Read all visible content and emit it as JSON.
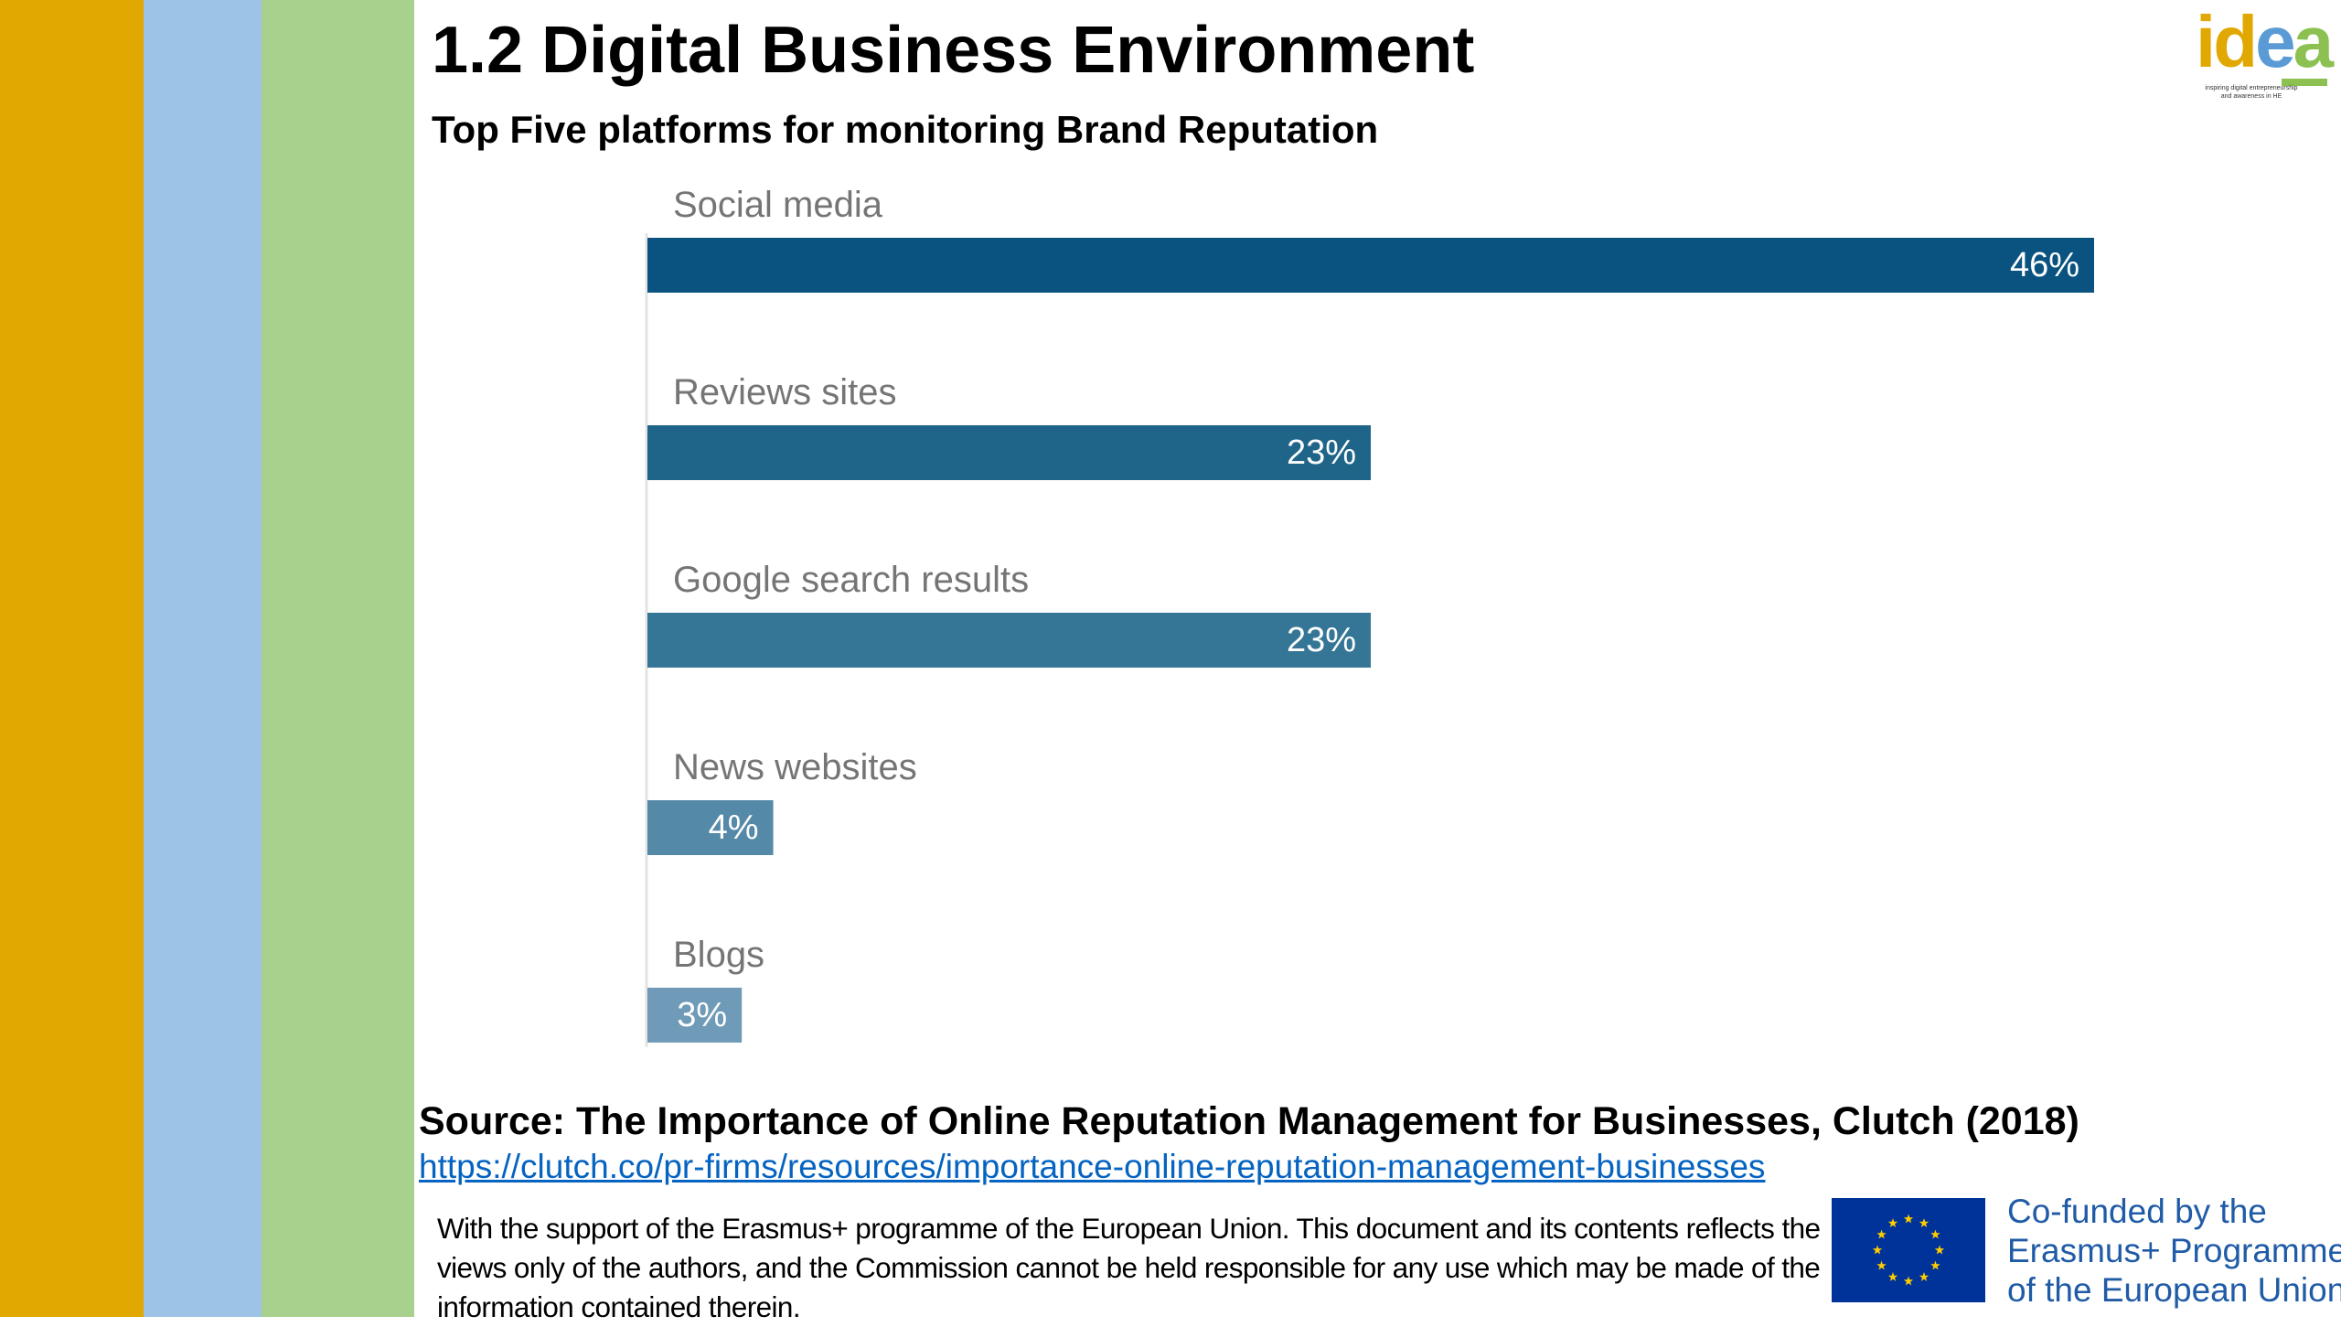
{
  "slide": {
    "title": "1.2 Digital Business Environment",
    "subtitle": "Top Five platforms for monitoring Brand Reputation"
  },
  "logo": {
    "text": "idea",
    "tagline": "inspiring digital entrepreneurship and awareness in HE"
  },
  "colors": {
    "stripe_1": "#e0a800",
    "stripe_2": "#9dc3e6",
    "stripe_3": "#a9d18e",
    "bar_colors": [
      "#0a5380",
      "#1f6489",
      "#357595",
      "#5489a8",
      "#6f9bb8"
    ],
    "category_label": "#757575"
  },
  "chart_data": {
    "type": "bar",
    "orientation": "horizontal",
    "title": "Top Five platforms for monitoring Brand Reputation",
    "categories": [
      "Social media",
      "Reviews sites",
      "Google search results",
      "News websites",
      "Blogs"
    ],
    "values": [
      46,
      23,
      23,
      4,
      3
    ],
    "data_labels": [
      "46%",
      "23%",
      "23%",
      "4%",
      "3%"
    ],
    "unit": "%",
    "xlim": [
      0,
      46
    ],
    "grid": false,
    "legend": "none"
  },
  "source": {
    "text": "Source: The Importance of Online Reputation Management for Businesses, Clutch (2018)",
    "url": "https://clutch.co/pr-firms/resources/importance-online-reputation-management-businesses"
  },
  "footer": {
    "disclaimer": "With the support of the Erasmus+ programme of the European Union. This document and its contents reflects the views only of the authors, and the Commission cannot be held responsible for any use which may be made of the information contained therein.",
    "eu_lines": [
      "Co-funded by the",
      "Erasmus+ Programme",
      "of the European Union"
    ]
  }
}
